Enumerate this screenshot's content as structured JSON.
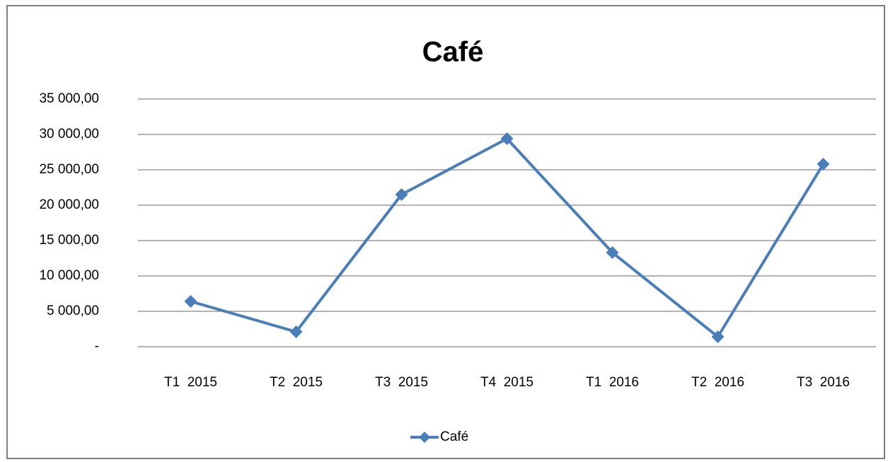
{
  "chart_data": {
    "type": "line",
    "title": "Café",
    "categories": [
      "T1  2015",
      "T2  2015",
      "T3  2015",
      "T4  2015",
      "T1  2016",
      "T2  2016",
      "T3  2016"
    ],
    "series": [
      {
        "name": "Café",
        "color": "#4a7ebb",
        "values": [
          6400,
          2100,
          21500,
          29400,
          13300,
          1400,
          25800
        ]
      }
    ],
    "ylim": [
      0,
      35000
    ],
    "yticks": [
      {
        "value": 0,
        "label": "-"
      },
      {
        "value": 5000,
        "label": "5 000,00"
      },
      {
        "value": 10000,
        "label": "10 000,00"
      },
      {
        "value": 15000,
        "label": "15 000,00"
      },
      {
        "value": 20000,
        "label": "20 000,00"
      },
      {
        "value": 25000,
        "label": "25 000,00"
      },
      {
        "value": 30000,
        "label": "30 000,00"
      },
      {
        "value": 35000,
        "label": "35 000,00"
      }
    ],
    "grid": true,
    "legend": "bottom"
  }
}
